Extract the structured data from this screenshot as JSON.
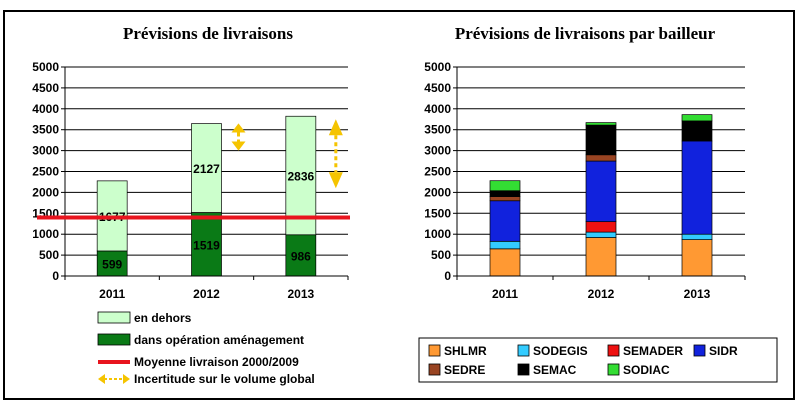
{
  "chart_data": [
    {
      "type": "bar",
      "stacked": true,
      "title": "Prévisions de livraisons",
      "xlabel": "",
      "ylabel": "",
      "ylim": [
        0,
        5000
      ],
      "yticks": [
        0,
        500,
        1000,
        1500,
        2000,
        2500,
        3000,
        3500,
        4000,
        4500,
        5000
      ],
      "grid": true,
      "legend_position": "bottom",
      "categories": [
        "2011",
        "2012",
        "2013"
      ],
      "series": [
        {
          "name": "dans opération aménagement",
          "values": [
            599,
            1519,
            986
          ],
          "color": "#0a7a16",
          "labels": [
            "599",
            "1519",
            "986"
          ]
        },
        {
          "name": "en dehors",
          "values": [
            1677,
            2127,
            2836
          ],
          "color": "#ccffcc",
          "labels": [
            "1677",
            "2127",
            "2836"
          ]
        }
      ],
      "reference_line": {
        "name": "Moyenne livraison 2000/2009",
        "value": 1400,
        "color": "#e8141e"
      },
      "uncertainty": {
        "name": "Incertitude sur le volume global",
        "color": "#f5c400",
        "ranges": [
          null,
          [
            3000,
            3650
          ],
          [
            2100,
            3750
          ]
        ]
      }
    },
    {
      "type": "bar",
      "stacked": true,
      "title": "Prévisions de livraisons par bailleur",
      "xlabel": "",
      "ylabel": "",
      "ylim": [
        0,
        5000
      ],
      "yticks": [
        0,
        500,
        1000,
        1500,
        2000,
        2500,
        3000,
        3500,
        4000,
        4500,
        5000
      ],
      "grid": true,
      "legend_position": "bottom",
      "categories": [
        "2011",
        "2012",
        "2013"
      ],
      "series": [
        {
          "name": "SHLMR",
          "values": [
            650,
            920,
            870
          ],
          "color": "#ff9933"
        },
        {
          "name": "SODEGIS",
          "values": [
            180,
            130,
            130
          ],
          "color": "#33ccff"
        },
        {
          "name": "SEMADER",
          "values": [
            0,
            250,
            0
          ],
          "color": "#ee1111"
        },
        {
          "name": "SIDR",
          "values": [
            970,
            1450,
            2230
          ],
          "color": "#1122dd"
        },
        {
          "name": "SEDRE",
          "values": [
            100,
            150,
            0
          ],
          "color": "#994422"
        },
        {
          "name": "SEMAC",
          "values": [
            140,
            710,
            480
          ],
          "color": "#000000"
        },
        {
          "name": "SODIAC",
          "values": [
            240,
            60,
            150
          ],
          "color": "#33dd33"
        }
      ]
    }
  ]
}
